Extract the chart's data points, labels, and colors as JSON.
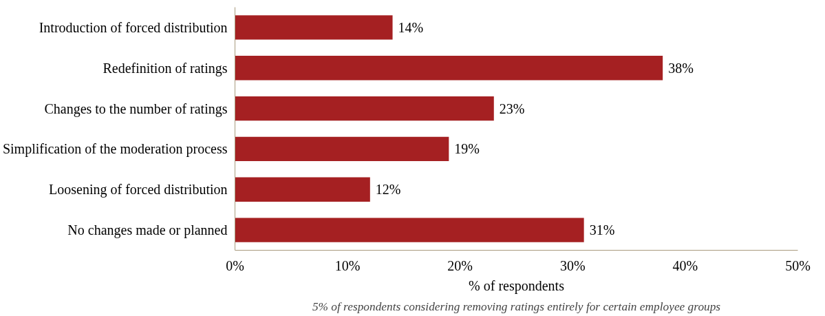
{
  "chart_data": {
    "type": "bar",
    "orientation": "horizontal",
    "categories": [
      "Introduction of forced distribution",
      "Redefinition of ratings",
      "Changes to the number of ratings",
      "Simplification of the moderation process",
      "Loosening of forced distribution",
      "No changes made or planned"
    ],
    "values": [
      14,
      38,
      23,
      19,
      12,
      31
    ],
    "color": "#a52022",
    "xlim": [
      0,
      50
    ],
    "xticks": [
      {
        "value": 0,
        "label": "0%"
      },
      {
        "value": 10,
        "label": "10%"
      },
      {
        "value": 20,
        "label": "20%"
      },
      {
        "value": 30,
        "label": "30%"
      },
      {
        "value": 40,
        "label": "40%"
      },
      {
        "value": 50,
        "label": "50%"
      }
    ],
    "xlabel": "% of respondents",
    "data_labels": true,
    "value_labels": [
      "14%",
      "38%",
      "23%",
      "19%",
      "12%",
      "31%"
    ],
    "grid": false,
    "annotations": [
      "5% of respondents considering removing ratings entirely for certain employee groups"
    ]
  }
}
